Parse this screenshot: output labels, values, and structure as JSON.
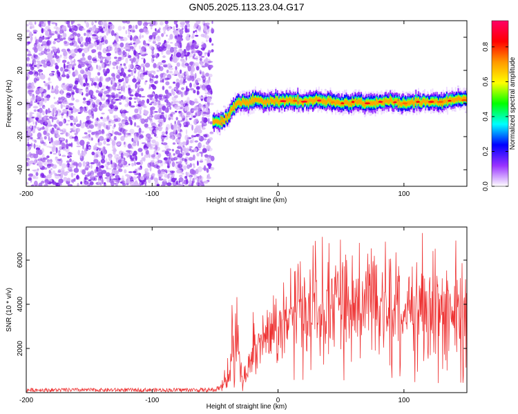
{
  "title": "GN05.2025.113.23.04.G17",
  "chart_data": [
    {
      "type": "heatmap",
      "xlabel": "Height of straight line (km)",
      "ylabel": "Frequency (Hz)",
      "xlim": [
        -200,
        150
      ],
      "ylim": [
        -50,
        50
      ],
      "xticks": [
        -200,
        -100,
        0,
        100
      ],
      "yticks": [
        -40,
        -20,
        0,
        20,
        40
      ],
      "colorbar": {
        "label": "Normalized spectral amplitude",
        "range": [
          0,
          0.95
        ],
        "ticks": [
          0.0,
          0.2,
          0.4,
          0.6,
          0.8
        ],
        "colormap": [
          "#ffffff",
          "#9933ff",
          "#0000ff",
          "#00ffff",
          "#00ff00",
          "#ffff00",
          "#ff9900",
          "#ff0000",
          "#ff0066"
        ]
      },
      "noise_region": {
        "x_range": [
          -200,
          -52
        ],
        "color": "#8a2be2"
      },
      "ridge": {
        "x": [
          -52,
          -48,
          -44,
          -40,
          -36,
          -32,
          -28,
          -24,
          -20,
          -16,
          -12,
          -8,
          -4,
          0,
          10,
          20,
          30,
          40,
          50,
          60,
          70,
          80,
          90,
          100,
          110,
          120,
          130,
          140,
          150
        ],
        "freq": [
          -11,
          -11,
          -10,
          -8,
          -2,
          0,
          1,
          0,
          3,
          2,
          1,
          1,
          2,
          1,
          2,
          1,
          2,
          1,
          0,
          1,
          0,
          1,
          1,
          0,
          1,
          1,
          1,
          2,
          2
        ],
        "peak_amplitude": 0.9
      }
    },
    {
      "type": "line",
      "xlabel": "Height of straight line (km)",
      "ylabel": "SNR (10 * v/v)",
      "xlim": [
        -200,
        150
      ],
      "ylim": [
        0,
        7500
      ],
      "xticks": [
        -200,
        -100,
        0,
        100
      ],
      "yticks": [
        2000,
        4000,
        6000
      ],
      "color": "#ee3333",
      "envelope": {
        "x": [
          -200,
          -100,
          -50,
          -45,
          -40,
          -36,
          -32,
          -30,
          -27,
          -24,
          -20,
          -15,
          -10,
          0,
          10,
          20,
          30,
          40,
          50,
          60,
          70,
          80,
          90,
          100,
          110,
          120,
          130,
          140,
          150
        ],
        "mean": [
          120,
          120,
          120,
          300,
          800,
          1600,
          2200,
          1000,
          500,
          1000,
          1800,
          2300,
          2600,
          3000,
          3300,
          3600,
          3800,
          3900,
          3900,
          3900,
          3900,
          3800,
          3900,
          3900,
          3800,
          3800,
          3700,
          3700,
          3600
        ],
        "max": [
          200,
          200,
          220,
          800,
          2000,
          4500,
          5200,
          2000,
          1500,
          2800,
          4000,
          4500,
          4800,
          5500,
          6000,
          6800,
          7200,
          7000,
          7200,
          7000,
          6900,
          7100,
          6900,
          6900,
          7000,
          7600,
          7200,
          7000,
          6800
        ],
        "min": [
          30,
          30,
          30,
          50,
          100,
          200,
          300,
          100,
          50,
          300,
          500,
          600,
          600,
          700,
          600,
          500,
          500,
          500,
          500,
          400,
          400,
          400,
          400,
          500,
          400,
          400,
          400,
          300,
          300
        ]
      }
    }
  ]
}
